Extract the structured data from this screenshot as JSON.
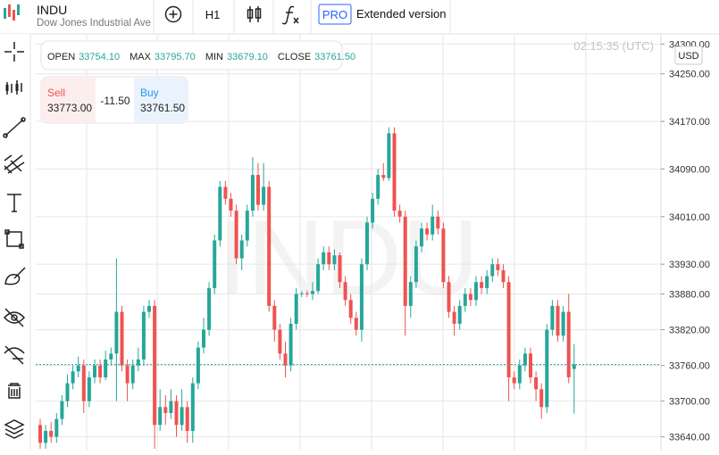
{
  "toolbar": {
    "symbol": "INDU",
    "name": "Dow Jones Industrial Ave",
    "interval": "H1",
    "pro": "PRO",
    "extended": "Extended version"
  },
  "time": "02:15:35 (UTC)",
  "currency": "USD",
  "watermark": "INDU",
  "ohlc": {
    "open_label": "OPEN",
    "open": "33754.10",
    "max_label": "MAX",
    "max": "33795.70",
    "min_label": "MIN",
    "min": "33679.10",
    "close_label": "CLOSE",
    "close": "33761.50"
  },
  "trade": {
    "sell_label": "Sell",
    "sell": "33773.00",
    "spread": "-11.50",
    "buy_label": "Buy",
    "buy": "33761.50"
  },
  "chart_data": {
    "type": "candlestick",
    "up_color": "#26a69a",
    "down_color": "#ef5350",
    "ylim": [
      33617,
      34317
    ],
    "yticks": [
      {
        "value": 34300,
        "label": "34300.00"
      },
      {
        "value": 34250,
        "label": "34250.00"
      },
      {
        "value": 34170,
        "label": "34170.00"
      },
      {
        "value": 34090,
        "label": "34090.00"
      },
      {
        "value": 34010,
        "label": "34010.00"
      },
      {
        "value": 33930,
        "label": "33930.00"
      },
      {
        "value": 33880,
        "label": "33880.00"
      },
      {
        "value": 33820,
        "label": "33820.00"
      },
      {
        "value": 33760,
        "label": "33760.00"
      },
      {
        "value": 33700,
        "label": "33700.00"
      },
      {
        "value": 33640,
        "label": "33640.00"
      }
    ],
    "grid": true,
    "last_price": 33761.5,
    "candles": [
      [
        33660,
        33670,
        33620,
        33630
      ],
      [
        33630,
        33660,
        33620,
        33650
      ],
      [
        33650,
        33665,
        33630,
        33640
      ],
      [
        33640,
        33680,
        33630,
        33670
      ],
      [
        33670,
        33710,
        33660,
        33700
      ],
      [
        33700,
        33745,
        33690,
        33730
      ],
      [
        33730,
        33760,
        33720,
        33750
      ],
      [
        33750,
        33775,
        33740,
        33760
      ],
      [
        33760,
        33770,
        33680,
        33700
      ],
      [
        33700,
        33750,
        33690,
        33740
      ],
      [
        33740,
        33770,
        33730,
        33760
      ],
      [
        33760,
        33770,
        33730,
        33740
      ],
      [
        33740,
        33785,
        33735,
        33770
      ],
      [
        33770,
        33790,
        33760,
        33780
      ],
      [
        33780,
        33940,
        33700,
        33850
      ],
      [
        33850,
        33860,
        33750,
        33760
      ],
      [
        33760,
        33770,
        33700,
        33730
      ],
      [
        33730,
        33770,
        33720,
        33760
      ],
      [
        33760,
        33790,
        33750,
        33770
      ],
      [
        33770,
        33860,
        33760,
        33850
      ],
      [
        33850,
        33870,
        33840,
        33860
      ],
      [
        33860,
        33870,
        33620,
        33660
      ],
      [
        33660,
        33720,
        33650,
        33690
      ],
      [
        33690,
        33710,
        33660,
        33680
      ],
      [
        33680,
        33720,
        33670,
        33700
      ],
      [
        33700,
        33710,
        33640,
        33660
      ],
      [
        33660,
        33720,
        33650,
        33690
      ],
      [
        33690,
        33700,
        33630,
        33650
      ],
      [
        33650,
        33740,
        33630,
        33730
      ],
      [
        33730,
        33800,
        33720,
        33790
      ],
      [
        33790,
        33840,
        33780,
        33820
      ],
      [
        33820,
        33900,
        33810,
        33890
      ],
      [
        33890,
        33980,
        33880,
        33970
      ],
      [
        33970,
        34070,
        33960,
        34060
      ],
      [
        34060,
        34070,
        34030,
        34040
      ],
      [
        34040,
        34050,
        34010,
        34020
      ],
      [
        34020,
        34030,
        33930,
        33940
      ],
      [
        33940,
        33980,
        33920,
        33970
      ],
      [
        33970,
        34030,
        33960,
        34020
      ],
      [
        34020,
        34110,
        34010,
        34080
      ],
      [
        34080,
        34100,
        34020,
        34030
      ],
      [
        34030,
        34100,
        34020,
        34060
      ],
      [
        34060,
        34070,
        33850,
        33860
      ],
      [
        33860,
        33870,
        33800,
        33820
      ],
      [
        33820,
        33830,
        33770,
        33780
      ],
      [
        33780,
        33800,
        33740,
        33760
      ],
      [
        33760,
        33840,
        33750,
        33830
      ],
      [
        33830,
        33890,
        33820,
        33880
      ],
      [
        33880,
        33885,
        33875,
        33881
      ],
      [
        33881,
        33886,
        33875,
        33880
      ],
      [
        33880,
        33900,
        33870,
        33885
      ],
      [
        33885,
        33940,
        33880,
        33930
      ],
      [
        33930,
        33960,
        33920,
        33950
      ],
      [
        33950,
        33960,
        33920,
        33930
      ],
      [
        33930,
        33955,
        33920,
        33945
      ],
      [
        33945,
        33950,
        33890,
        33900
      ],
      [
        33900,
        33910,
        33860,
        33870
      ],
      [
        33870,
        33880,
        33830,
        33840
      ],
      [
        33840,
        33850,
        33810,
        33820
      ],
      [
        33820,
        33940,
        33800,
        33930
      ],
      [
        33930,
        34010,
        33920,
        34000
      ],
      [
        34000,
        34050,
        33990,
        34040
      ],
      [
        34040,
        34090,
        34030,
        34080
      ],
      [
        34080,
        34100,
        34070,
        34075
      ],
      [
        34075,
        34160,
        34070,
        34150
      ],
      [
        34150,
        34160,
        34010,
        34020
      ],
      [
        34020,
        34030,
        34000,
        34010
      ],
      [
        34010,
        34020,
        33810,
        33860
      ],
      [
        33860,
        33910,
        33840,
        33900
      ],
      [
        33900,
        33970,
        33890,
        33960
      ],
      [
        33960,
        34000,
        33950,
        33990
      ],
      [
        33990,
        34000,
        33970,
        33980
      ],
      [
        33980,
        34030,
        33970,
        34010
      ],
      [
        34010,
        34020,
        33980,
        33990
      ],
      [
        33990,
        34000,
        33890,
        33900
      ],
      [
        33900,
        33910,
        33840,
        33850
      ],
      [
        33850,
        33860,
        33810,
        33830
      ],
      [
        33830,
        33870,
        33820,
        33860
      ],
      [
        33860,
        33890,
        33850,
        33880
      ],
      [
        33880,
        33890,
        33860,
        33870
      ],
      [
        33870,
        33910,
        33860,
        33900
      ],
      [
        33900,
        33910,
        33880,
        33890
      ],
      [
        33890,
        33920,
        33880,
        33910
      ],
      [
        33910,
        33940,
        33900,
        33930
      ],
      [
        33930,
        33940,
        33910,
        33920
      ],
      [
        33920,
        33930,
        33890,
        33900
      ],
      [
        33900,
        33910,
        33700,
        33740
      ],
      [
        33740,
        33750,
        33720,
        33730
      ],
      [
        33730,
        33770,
        33720,
        33760
      ],
      [
        33760,
        33790,
        33750,
        33780
      ],
      [
        33780,
        33790,
        33730,
        33740
      ],
      [
        33740,
        33750,
        33700,
        33720
      ],
      [
        33720,
        33730,
        33670,
        33690
      ],
      [
        33690,
        33830,
        33680,
        33820
      ],
      [
        33820,
        33870,
        33810,
        33860
      ],
      [
        33860,
        33870,
        33800,
        33810
      ],
      [
        33810,
        33860,
        33800,
        33850
      ],
      [
        33850,
        33880,
        33730,
        33740
      ],
      [
        33754.1,
        33795.7,
        33679.1,
        33761.5
      ]
    ]
  }
}
